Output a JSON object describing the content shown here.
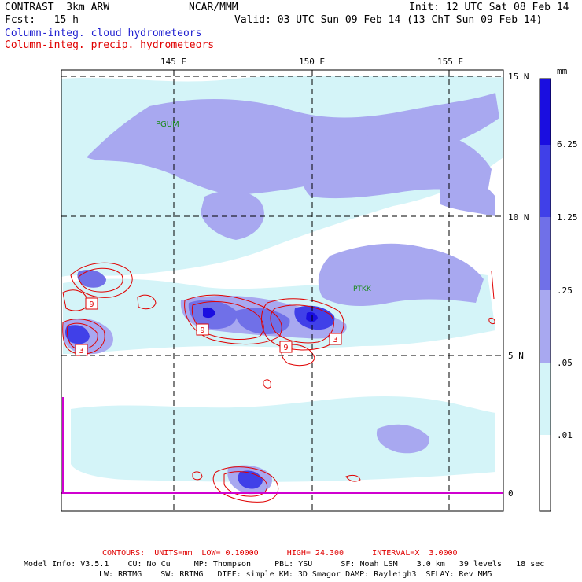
{
  "header": {
    "left_line1": "CONTRAST  3km ARW",
    "left_line2": "Fcst:   15 h",
    "center": "NCAR/MMM",
    "init": "Init: 12 UTC Sat 08 Feb 14",
    "valid": "Valid: 03 UTC Sun 09 Feb 14 (13 ChT Sun 09 Feb 14)",
    "legend_blue": "Column-integ. cloud hydrometeors",
    "legend_red": "Column-integ. precip. hydrometeors"
  },
  "map": {
    "lon_labels": [
      "145 E",
      "150 E",
      "155 E"
    ],
    "lat_labels": [
      "15 N",
      "10 N",
      "5 N",
      "0"
    ],
    "stations": [
      "PGUM",
      "PTKK"
    ],
    "contour_labels": [
      "9",
      "3",
      "9",
      "9",
      "3"
    ]
  },
  "colorbar": {
    "unit": "mm",
    "levels": [
      "6.25",
      "1.25",
      ".25",
      ".05",
      ".01"
    ],
    "colors": [
      "#1a0ee0",
      "#4040e8",
      "#7070e8",
      "#a8a8f0",
      "#d4f4f8",
      "#ffffff"
    ]
  },
  "footer": {
    "contours": "CONTOURS:  UNITS=mm  LOW= 0.10000      HIGH= 24.300      INTERVAL=X  3.0000",
    "model_line1": "Model Info: V3.5.1    CU: No Cu     MP: Thompson     PBL: YSU      SF: Noah LSM    3.0 km   39 levels   18 sec",
    "model_line2": "LW: RRTMG    SW: RRTMG   DIFF: simple KM: 3D Smagor DAMP: Rayleigh3  SFLAY: Rev MM5"
  }
}
